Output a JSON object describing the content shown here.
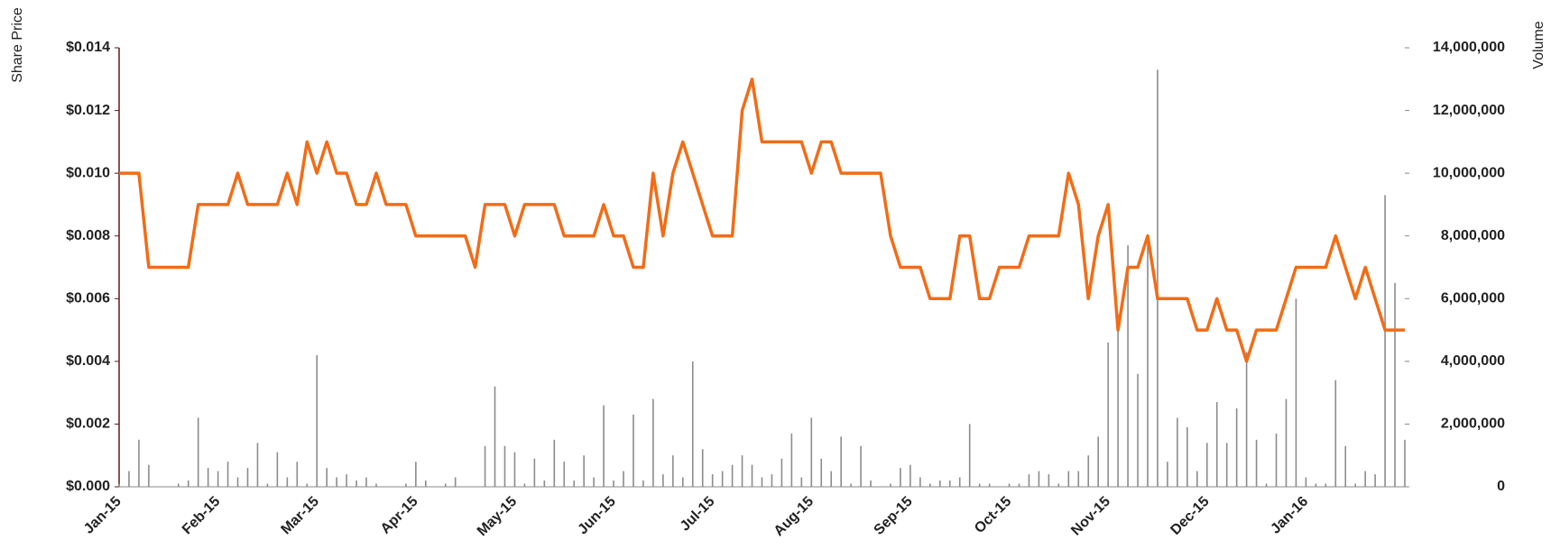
{
  "chart_data": {
    "type": "line_bar_dual",
    "ylabel": "Share Price",
    "y2label": "Volume",
    "categories": [
      "Jan-15",
      null,
      null,
      null,
      null,
      null,
      null,
      null,
      null,
      null,
      "Feb-15",
      null,
      null,
      null,
      null,
      null,
      null,
      null,
      null,
      null,
      "Mar-15",
      null,
      null,
      null,
      null,
      null,
      null,
      null,
      null,
      null,
      "Apr-15",
      null,
      null,
      null,
      null,
      null,
      null,
      null,
      null,
      null,
      "May-15",
      null,
      null,
      null,
      null,
      null,
      null,
      null,
      null,
      null,
      "Jun-15",
      null,
      null,
      null,
      null,
      null,
      null,
      null,
      null,
      null,
      "Jul-15",
      null,
      null,
      null,
      null,
      null,
      null,
      null,
      null,
      null,
      "Aug-15",
      null,
      null,
      null,
      null,
      null,
      null,
      null,
      null,
      null,
      "Sep-15",
      null,
      null,
      null,
      null,
      null,
      null,
      null,
      null,
      null,
      "Oct-15",
      null,
      null,
      null,
      null,
      null,
      null,
      null,
      null,
      null,
      "Nov-15",
      null,
      null,
      null,
      null,
      null,
      null,
      null,
      null,
      null,
      "Dec-15",
      null,
      null,
      null,
      null,
      null,
      null,
      null,
      null,
      null,
      "Jan-16",
      null,
      null,
      null,
      null,
      null,
      null,
      null,
      null,
      null,
      null
    ],
    "series": [
      {
        "name": "Share Price",
        "color": "#f26c16",
        "kind": "line",
        "axis": "y",
        "values": [
          0.01,
          0.01,
          0.01,
          0.007,
          0.007,
          0.007,
          0.007,
          0.007,
          0.009,
          0.009,
          0.009,
          0.009,
          0.01,
          0.009,
          0.009,
          0.009,
          0.009,
          0.01,
          0.009,
          0.011,
          0.01,
          0.011,
          0.01,
          0.01,
          0.009,
          0.009,
          0.01,
          0.009,
          0.009,
          0.009,
          0.008,
          0.008,
          0.008,
          0.008,
          0.008,
          0.008,
          0.007,
          0.009,
          0.009,
          0.009,
          0.008,
          0.009,
          0.009,
          0.009,
          0.009,
          0.008,
          0.008,
          0.008,
          0.008,
          0.009,
          0.008,
          0.008,
          0.007,
          0.007,
          0.01,
          0.008,
          0.01,
          0.011,
          0.01,
          0.009,
          0.008,
          0.008,
          0.008,
          0.012,
          0.013,
          0.011,
          0.011,
          0.011,
          0.011,
          0.011,
          0.01,
          0.011,
          0.011,
          0.01,
          0.01,
          0.01,
          0.01,
          0.01,
          0.008,
          0.007,
          0.007,
          0.007,
          0.006,
          0.006,
          0.006,
          0.008,
          0.008,
          0.006,
          0.006,
          0.007,
          0.007,
          0.007,
          0.008,
          0.008,
          0.008,
          0.008,
          0.01,
          0.009,
          0.006,
          0.008,
          0.009,
          0.005,
          0.007,
          0.007,
          0.008,
          0.006,
          0.006,
          0.006,
          0.006,
          0.005,
          0.005,
          0.006,
          0.005,
          0.005,
          0.004,
          0.005,
          0.005,
          0.005,
          0.006,
          0.007,
          0.007,
          0.007,
          0.007,
          0.008,
          0.007,
          0.006,
          0.007,
          0.006,
          0.005,
          0.005,
          0.005
        ]
      },
      {
        "name": "Volume",
        "color": "#8c8c8c",
        "kind": "bar",
        "axis": "y2",
        "values": [
          100000,
          500000,
          1500000,
          700000,
          0,
          0,
          100000,
          200000,
          2200000,
          600000,
          500000,
          800000,
          300000,
          600000,
          1400000,
          100000,
          1100000,
          300000,
          800000,
          100000,
          4200000,
          600000,
          300000,
          400000,
          200000,
          300000,
          100000,
          0,
          0,
          100000,
          800000,
          200000,
          0,
          100000,
          300000,
          0,
          0,
          1300000,
          3200000,
          1300000,
          1100000,
          100000,
          900000,
          200000,
          1500000,
          800000,
          200000,
          1000000,
          300000,
          2600000,
          200000,
          500000,
          2300000,
          200000,
          2800000,
          400000,
          1000000,
          300000,
          4000000,
          1200000,
          400000,
          500000,
          700000,
          1000000,
          700000,
          300000,
          400000,
          900000,
          1700000,
          300000,
          2200000,
          900000,
          500000,
          1600000,
          100000,
          1300000,
          200000,
          0,
          100000,
          600000,
          700000,
          300000,
          100000,
          200000,
          200000,
          300000,
          2000000,
          100000,
          100000,
          0,
          100000,
          100000,
          400000,
          500000,
          400000,
          100000,
          500000,
          500000,
          1000000,
          1600000,
          4600000,
          5500000,
          7700000,
          3600000,
          7800000,
          13300000,
          800000,
          2200000,
          1900000,
          500000,
          1400000,
          2700000,
          1400000,
          2500000,
          4300000,
          1500000,
          100000,
          1700000,
          2800000,
          6000000,
          300000,
          100000,
          100000,
          3400000,
          1300000,
          100000,
          500000,
          400000,
          9300000,
          6500000,
          1500000
        ]
      }
    ],
    "ylim": [
      0,
      0.014
    ],
    "yticks": [
      {
        "value": 0,
        "label": "$0.000"
      },
      {
        "value": 0.002,
        "label": "$0.002"
      },
      {
        "value": 0.004,
        "label": "$0.004"
      },
      {
        "value": 0.006,
        "label": "$0.006"
      },
      {
        "value": 0.008,
        "label": "$0.008"
      },
      {
        "value": 0.01,
        "label": "$0.010"
      },
      {
        "value": 0.012,
        "label": "$0.012"
      },
      {
        "value": 0.014,
        "label": "$0.014"
      }
    ],
    "y2lim": [
      0,
      14000000
    ],
    "y2ticks": [
      0,
      {
        "value": 2000000,
        "label": "2,000,000"
      },
      {
        "value": 4000000,
        "label": "4,000,000"
      },
      {
        "value": 6000000,
        "label": "6,000,000"
      },
      {
        "value": 8000000,
        "label": "8,000,000"
      },
      {
        "value": 10000000,
        "label": "10,000,000"
      },
      {
        "value": 12000000,
        "label": "12,000,000"
      },
      {
        "value": 14000000,
        "label": "14,000,000"
      }
    ],
    "grid": false
  }
}
